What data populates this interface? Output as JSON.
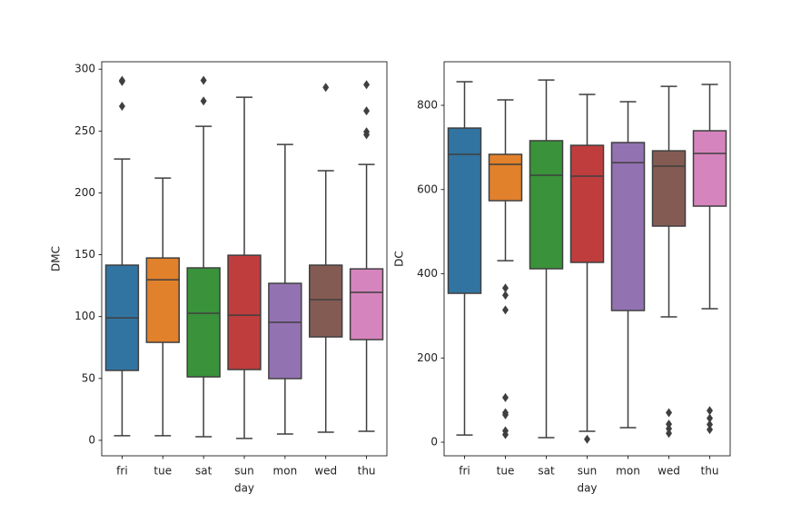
{
  "chart_data": [
    {
      "type": "box",
      "x_label": "day",
      "y_label": "DMC",
      "categories": [
        "fri",
        "tue",
        "sat",
        "sun",
        "mon",
        "wed",
        "thu"
      ],
      "colors": [
        "#3274a1",
        "#e1812c",
        "#3a923a",
        "#c03d3e",
        "#9372b2",
        "#845b53",
        "#d684bd"
      ],
      "whisker_low": [
        3.7,
        3.7,
        2.9,
        1.5,
        5.1,
        6.6,
        7.3
      ],
      "q1": [
        56.5,
        79.2,
        51.3,
        57.2,
        49.9,
        83.6,
        81.4
      ],
      "median": [
        99,
        129.8,
        102.7,
        101.2,
        95.4,
        113.7,
        119.6
      ],
      "q3": [
        141.6,
        147.4,
        139.4,
        149.6,
        126.9,
        141.6,
        138.6
      ],
      "whisker_high": [
        227.4,
        212,
        253.8,
        277.3,
        239.1,
        217.9,
        223
      ],
      "outliers": [
        [
          290,
          291,
          270
        ],
        [],
        [
          274.3,
          291
        ],
        [],
        [],
        [
          285.3
        ],
        [
          287.5,
          266.3,
          249.4,
          247
        ]
      ],
      "ylim": [
        -12.5,
        306
      ],
      "yticks": [
        0,
        50,
        100,
        150,
        200,
        250,
        300
      ]
    },
    {
      "type": "box",
      "x_label": "day",
      "y_label": "DC",
      "categories": [
        "fri",
        "tue",
        "sat",
        "sun",
        "mon",
        "wed",
        "thu"
      ],
      "colors": [
        "#3274a1",
        "#e1812c",
        "#3a923a",
        "#c03d3e",
        "#9372b2",
        "#845b53",
        "#d684bd"
      ],
      "whisker_low": [
        17,
        431,
        10.8,
        25.9,
        34.5,
        297.6,
        317
      ],
      "q1": [
        353.6,
        573.6,
        411.9,
        427,
        312.7,
        513.2,
        560.6
      ],
      "median": [
        683.6,
        659.8,
        634,
        631.8,
        664,
        655.5,
        685.7
      ],
      "q3": [
        746,
        683.6,
        716,
        705,
        711.6,
        692,
        739.6
      ],
      "whisker_high": [
        856,
        813,
        860,
        825.9,
        808.6,
        845,
        849.6
      ],
      "outliers": [
        [],
        [
          366,
          349,
          314,
          106,
          70,
          65,
          27,
          18
        ],
        [],
        [
          7
        ],
        [],
        [
          70,
          43,
          32,
          21
        ],
        [
          75,
          57,
          42,
          30
        ]
      ],
      "ylim": [
        -32.3,
        903.5
      ],
      "yticks": [
        0,
        200,
        400,
        600,
        800
      ]
    }
  ]
}
